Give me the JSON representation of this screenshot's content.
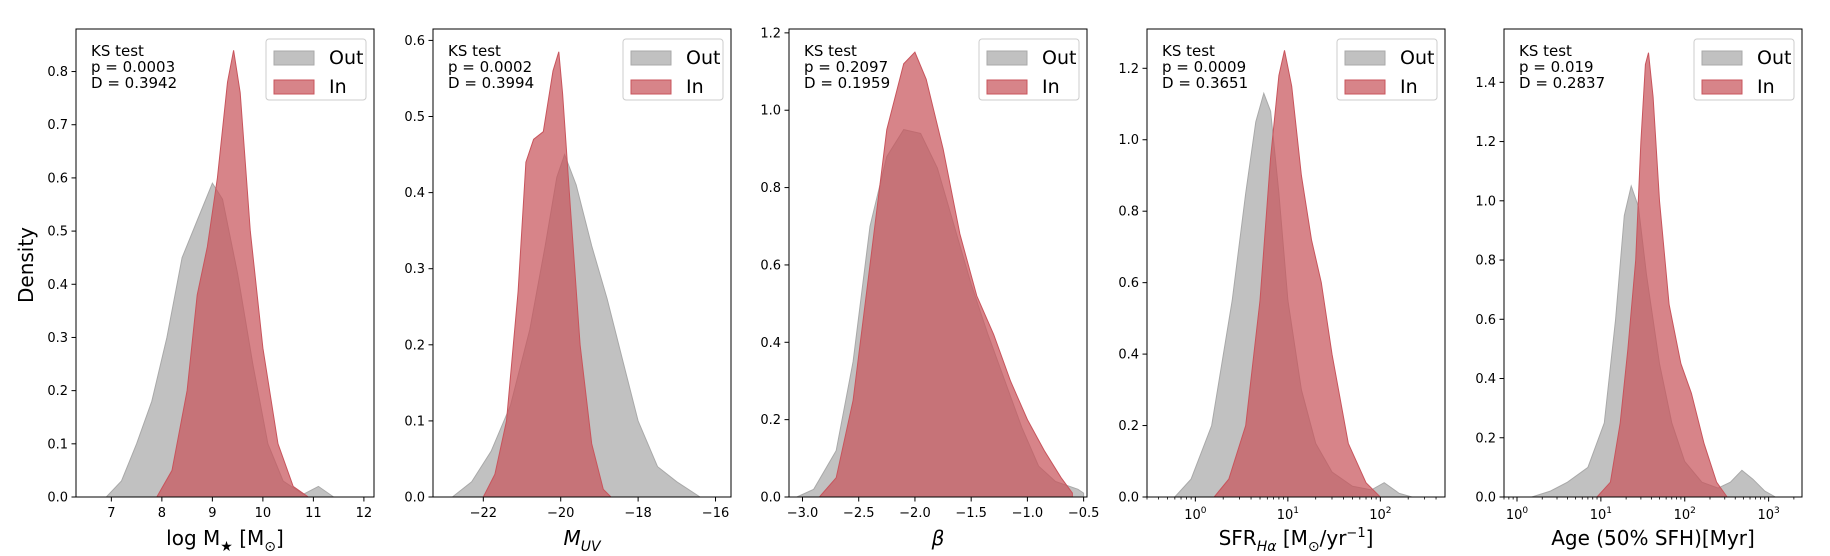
{
  "figure": {
    "ylabel": "Density"
  },
  "chart_data": [
    {
      "type": "area",
      "xlabel": "log M$_\\star$ [M$_\\odot$]",
      "xlabel_parts": [
        {
          "t": "log M",
          "s": "n"
        },
        {
          "t": "★",
          "s": "sub"
        },
        {
          "t": " [M",
          "s": "n"
        },
        {
          "t": "⊙",
          "s": "sub"
        },
        {
          "t": "]",
          "s": "n"
        }
      ],
      "xscale": "linear",
      "xlim": [
        6.3,
        12.2
      ],
      "ylim": [
        0,
        0.88
      ],
      "xticks": [
        7,
        8,
        9,
        10,
        11,
        12
      ],
      "xticklabels": [
        "7",
        "8",
        "9",
        "10",
        "11",
        "12"
      ],
      "yticks": [
        0,
        0.1,
        0.2,
        0.3,
        0.4,
        0.5,
        0.6,
        0.7,
        0.8
      ],
      "yticklabels": [
        "0.0",
        "0.1",
        "0.2",
        "0.3",
        "0.4",
        "0.5",
        "0.6",
        "0.7",
        "0.8"
      ],
      "annotation": [
        "KS test",
        "p = 0.0003",
        "D = 0.3942"
      ],
      "legend": [
        "Out",
        "In"
      ],
      "series": [
        {
          "name": "Out",
          "color": "#a9a9a9",
          "points": [
            [
              6.9,
              0
            ],
            [
              7.2,
              0.03
            ],
            [
              7.5,
              0.1
            ],
            [
              7.8,
              0.18
            ],
            [
              8.1,
              0.3
            ],
            [
              8.4,
              0.45
            ],
            [
              8.7,
              0.52
            ],
            [
              9.0,
              0.59
            ],
            [
              9.2,
              0.56
            ],
            [
              9.5,
              0.42
            ],
            [
              9.8,
              0.25
            ],
            [
              10.1,
              0.1
            ],
            [
              10.4,
              0.03
            ],
            [
              10.8,
              0.005
            ],
            [
              11.1,
              0.02
            ],
            [
              11.4,
              0.0
            ]
          ]
        },
        {
          "name": "In",
          "color": "#c8545c",
          "points": [
            [
              7.9,
              0
            ],
            [
              8.2,
              0.05
            ],
            [
              8.5,
              0.2
            ],
            [
              8.7,
              0.38
            ],
            [
              8.9,
              0.47
            ],
            [
              9.1,
              0.6
            ],
            [
              9.3,
              0.78
            ],
            [
              9.42,
              0.84
            ],
            [
              9.55,
              0.76
            ],
            [
              9.75,
              0.5
            ],
            [
              10.0,
              0.28
            ],
            [
              10.3,
              0.1
            ],
            [
              10.6,
              0.02
            ],
            [
              10.9,
              0
            ]
          ]
        }
      ]
    },
    {
      "type": "area",
      "xlabel": "M_UV",
      "xlabel_parts": [
        {
          "t": "M",
          "s": "i"
        },
        {
          "t": "UV",
          "s": "isub"
        }
      ],
      "xscale": "linear",
      "xlim": [
        -23.3,
        -15.6
      ],
      "ylim": [
        0,
        0.615
      ],
      "xticks": [
        -22,
        -20,
        -18,
        -16
      ],
      "xticklabels": [
        "−22",
        "−20",
        "−18",
        "−16"
      ],
      "yticks": [
        0,
        0.1,
        0.2,
        0.3,
        0.4,
        0.5,
        0.6
      ],
      "yticklabels": [
        "0.0",
        "0.1",
        "0.2",
        "0.3",
        "0.4",
        "0.5",
        "0.6"
      ],
      "annotation": [
        "KS test",
        "p = 0.0002",
        "D = 0.3994"
      ],
      "legend": [
        "Out",
        "In"
      ],
      "series": [
        {
          "name": "Out",
          "color": "#a9a9a9",
          "points": [
            [
              -22.8,
              0
            ],
            [
              -22.3,
              0.02
            ],
            [
              -21.8,
              0.06
            ],
            [
              -21.3,
              0.12
            ],
            [
              -20.8,
              0.22
            ],
            [
              -20.4,
              0.33
            ],
            [
              -20.1,
              0.42
            ],
            [
              -19.9,
              0.45
            ],
            [
              -19.6,
              0.41
            ],
            [
              -19.2,
              0.33
            ],
            [
              -18.8,
              0.26
            ],
            [
              -18.4,
              0.18
            ],
            [
              -18.0,
              0.1
            ],
            [
              -17.5,
              0.04
            ],
            [
              -17.0,
              0.02
            ],
            [
              -16.4,
              0
            ]
          ]
        },
        {
          "name": "In",
          "color": "#c8545c",
          "points": [
            [
              -22.0,
              0
            ],
            [
              -21.7,
              0.03
            ],
            [
              -21.4,
              0.1
            ],
            [
              -21.1,
              0.27
            ],
            [
              -20.9,
              0.44
            ],
            [
              -20.7,
              0.47
            ],
            [
              -20.45,
              0.48
            ],
            [
              -20.2,
              0.56
            ],
            [
              -20.05,
              0.585
            ],
            [
              -19.95,
              0.53
            ],
            [
              -19.75,
              0.38
            ],
            [
              -19.5,
              0.2
            ],
            [
              -19.2,
              0.07
            ],
            [
              -18.9,
              0.01
            ],
            [
              -18.7,
              0
            ]
          ]
        }
      ]
    },
    {
      "type": "area",
      "xlabel": "β",
      "xlabel_parts": [
        {
          "t": "β",
          "s": "i"
        }
      ],
      "xscale": "linear",
      "xlim": [
        -3.12,
        -0.47
      ],
      "ylim": [
        0,
        1.21
      ],
      "xticks": [
        -3.0,
        -2.5,
        -2.0,
        -1.5,
        -1.0,
        -0.5
      ],
      "xticklabels": [
        "−3.0",
        "−2.5",
        "−2.0",
        "−1.5",
        "−1.0",
        "−0.5"
      ],
      "yticks": [
        0,
        0.2,
        0.4,
        0.6,
        0.8,
        1.0,
        1.2
      ],
      "yticklabels": [
        "0.0",
        "0.2",
        "0.4",
        "0.6",
        "0.8",
        "1.0",
        "1.2"
      ],
      "annotation": [
        "KS test",
        "p = 0.2097",
        "D = 0.1959"
      ],
      "legend": [
        "Out",
        "In"
      ],
      "series": [
        {
          "name": "Out",
          "color": "#a9a9a9",
          "points": [
            [
              -3.05,
              0
            ],
            [
              -2.9,
              0.02
            ],
            [
              -2.7,
              0.12
            ],
            [
              -2.55,
              0.35
            ],
            [
              -2.4,
              0.7
            ],
            [
              -2.25,
              0.88
            ],
            [
              -2.1,
              0.95
            ],
            [
              -1.95,
              0.94
            ],
            [
              -1.8,
              0.85
            ],
            [
              -1.65,
              0.7
            ],
            [
              -1.5,
              0.55
            ],
            [
              -1.35,
              0.42
            ],
            [
              -1.2,
              0.3
            ],
            [
              -1.05,
              0.18
            ],
            [
              -0.9,
              0.08
            ],
            [
              -0.75,
              0.04
            ],
            [
              -0.55,
              0.02
            ],
            [
              -0.5,
              0.01
            ]
          ]
        },
        {
          "name": "In",
          "color": "#c8545c",
          "points": [
            [
              -2.85,
              0
            ],
            [
              -2.7,
              0.05
            ],
            [
              -2.55,
              0.25
            ],
            [
              -2.4,
              0.6
            ],
            [
              -2.25,
              0.95
            ],
            [
              -2.1,
              1.12
            ],
            [
              -2.0,
              1.15
            ],
            [
              -1.9,
              1.08
            ],
            [
              -1.75,
              0.9
            ],
            [
              -1.6,
              0.68
            ],
            [
              -1.45,
              0.52
            ],
            [
              -1.3,
              0.42
            ],
            [
              -1.15,
              0.3
            ],
            [
              -1.0,
              0.2
            ],
            [
              -0.85,
              0.12
            ],
            [
              -0.7,
              0.05
            ],
            [
              -0.6,
              0.01
            ]
          ]
        }
      ]
    },
    {
      "type": "area",
      "xlabel": "SFR_Hα [M⊙/yr^-1]",
      "xlabel_parts": [
        {
          "t": "SFR",
          "s": "n"
        },
        {
          "t": "Hα",
          "s": "isub"
        },
        {
          "t": " [M",
          "s": "n"
        },
        {
          "t": "⊙",
          "s": "sub"
        },
        {
          "t": "/yr",
          "s": "n"
        },
        {
          "t": "−1",
          "s": "sup"
        },
        {
          "t": "]",
          "s": "n"
        }
      ],
      "xscale": "log",
      "xlim": [
        0.3,
        500
      ],
      "ylim": [
        0,
        1.31
      ],
      "xticks": [
        1,
        10,
        100
      ],
      "xticklabels": [
        [
          "10",
          "0"
        ],
        [
          "10",
          "1"
        ],
        [
          "10",
          "2"
        ]
      ],
      "yticks": [
        0,
        0.2,
        0.4,
        0.6,
        0.8,
        1.0,
        1.2
      ],
      "yticklabels": [
        "0.0",
        "0.2",
        "0.4",
        "0.6",
        "0.8",
        "1.0",
        "1.2"
      ],
      "annotation": [
        "KS test",
        "p = 0.0009",
        "D = 0.3651"
      ],
      "legend": [
        "Out",
        "In"
      ],
      "series": [
        {
          "name": "Out",
          "color": "#a9a9a9",
          "points": [
            [
              0.6,
              0
            ],
            [
              0.9,
              0.05
            ],
            [
              1.5,
              0.2
            ],
            [
              2.5,
              0.55
            ],
            [
              3.5,
              0.85
            ],
            [
              4.5,
              1.05
            ],
            [
              5.5,
              1.13
            ],
            [
              6.5,
              1.08
            ],
            [
              8,
              0.85
            ],
            [
              10,
              0.55
            ],
            [
              14,
              0.3
            ],
            [
              20,
              0.15
            ],
            [
              30,
              0.07
            ],
            [
              50,
              0.03
            ],
            [
              80,
              0.02
            ],
            [
              110,
              0.04
            ],
            [
              160,
              0.01
            ],
            [
              220,
              0
            ]
          ]
        },
        {
          "name": "In",
          "color": "#c8545c",
          "points": [
            [
              1.6,
              0
            ],
            [
              2.3,
              0.05
            ],
            [
              3.5,
              0.2
            ],
            [
              5,
              0.55
            ],
            [
              6.5,
              0.95
            ],
            [
              8,
              1.18
            ],
            [
              9.2,
              1.25
            ],
            [
              11,
              1.15
            ],
            [
              14,
              0.9
            ],
            [
              18,
              0.72
            ],
            [
              23,
              0.6
            ],
            [
              30,
              0.4
            ],
            [
              45,
              0.15
            ],
            [
              70,
              0.04
            ],
            [
              100,
              0
            ]
          ]
        }
      ]
    },
    {
      "type": "area",
      "xlabel": "Age (50% SFH)[Myr]",
      "xlabel_parts": [
        {
          "t": "Age (50% SFH)[Myr]",
          "s": "n"
        }
      ],
      "xscale": "log",
      "xlim": [
        0.7,
        2500
      ],
      "ylim": [
        0,
        1.58
      ],
      "xticks": [
        1,
        10,
        100,
        1000
      ],
      "xticklabels": [
        [
          "10",
          "0"
        ],
        [
          "10",
          "1"
        ],
        [
          "10",
          "2"
        ],
        [
          "10",
          "3"
        ]
      ],
      "yticks": [
        0,
        0.2,
        0.4,
        0.6,
        0.8,
        1.0,
        1.2,
        1.4
      ],
      "yticklabels": [
        "0.0",
        "0.2",
        "0.4",
        "0.6",
        "0.8",
        "1.0",
        "1.2",
        "1.4"
      ],
      "annotation": [
        "KS test",
        "p = 0.019",
        "D = 0.2837"
      ],
      "legend": [
        "Out",
        "In"
      ],
      "series": [
        {
          "name": "Out",
          "color": "#a9a9a9",
          "points": [
            [
              1.5,
              0
            ],
            [
              2.5,
              0.02
            ],
            [
              4,
              0.05
            ],
            [
              7,
              0.1
            ],
            [
              11,
              0.25
            ],
            [
              15,
              0.6
            ],
            [
              19,
              0.95
            ],
            [
              23,
              1.05
            ],
            [
              28,
              0.98
            ],
            [
              35,
              0.75
            ],
            [
              50,
              0.45
            ],
            [
              70,
              0.25
            ],
            [
              100,
              0.12
            ],
            [
              160,
              0.05
            ],
            [
              250,
              0.03
            ],
            [
              350,
              0.05
            ],
            [
              480,
              0.09
            ],
            [
              650,
              0.06
            ],
            [
              900,
              0.02
            ],
            [
              1200,
              0
            ]
          ]
        },
        {
          "name": "In",
          "color": "#c8545c",
          "points": [
            [
              9,
              0
            ],
            [
              13,
              0.05
            ],
            [
              17,
              0.25
            ],
            [
              21,
              0.5
            ],
            [
              26,
              0.8
            ],
            [
              30,
              1.2
            ],
            [
              34,
              1.46
            ],
            [
              37,
              1.5
            ],
            [
              42,
              1.35
            ],
            [
              50,
              1.0
            ],
            [
              65,
              0.65
            ],
            [
              90,
              0.45
            ],
            [
              120,
              0.35
            ],
            [
              170,
              0.18
            ],
            [
              240,
              0.05
            ],
            [
              320,
              0
            ]
          ]
        }
      ]
    }
  ]
}
